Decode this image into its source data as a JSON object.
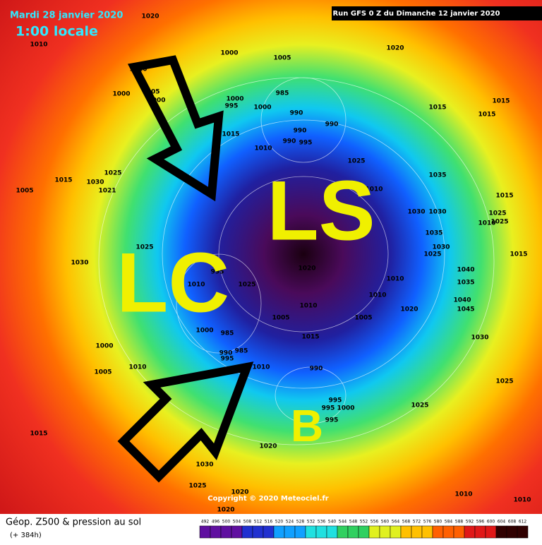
{
  "header": {
    "date": "Mardi 28 janvier 2020",
    "time": "1:00 locale",
    "run": "Run GFS 0 Z du Dimanche 12 janvier 2020"
  },
  "annotations": {
    "ls": "LS",
    "lc": "LC",
    "b": "B"
  },
  "isobar_labels": [
    1010,
    1020,
    1020,
    1000,
    1005,
    1010,
    1000,
    1005,
    1000,
    1000,
    995,
    1000,
    985,
    990,
    990,
    990,
    990,
    995,
    1015,
    1010,
    1015,
    1015,
    1015,
    1025,
    1035,
    1025,
    1030,
    1015,
    1005,
    1021,
    1030,
    1030,
    1015,
    1025,
    1010,
    1025,
    1035,
    1030,
    1025,
    1015,
    1025,
    1030,
    995,
    1010,
    1025,
    1020,
    1040,
    1035,
    1010,
    1010,
    1040,
    1045,
    1020,
    1005,
    1010,
    1005,
    1000,
    985,
    1015,
    1030,
    1000,
    990,
    985,
    995,
    1010,
    1005,
    1010,
    990,
    995,
    995,
    1000,
    995,
    1025,
    1025,
    1015,
    1020,
    1030,
    1025,
    1020,
    1020,
    1010,
    1010,
    1010
  ],
  "copyright": "Copyright © 2020 Meteociel.fr",
  "footer": {
    "title": "Géop. Z500 & pression au sol",
    "lead": "(+ 384h)",
    "scale": [
      492,
      496,
      500,
      504,
      508,
      512,
      516,
      520,
      524,
      528,
      532,
      536,
      540,
      544,
      548,
      552,
      556,
      560,
      564,
      568,
      572,
      576,
      580,
      584,
      588,
      592,
      596,
      600,
      604,
      608,
      612
    ]
  }
}
